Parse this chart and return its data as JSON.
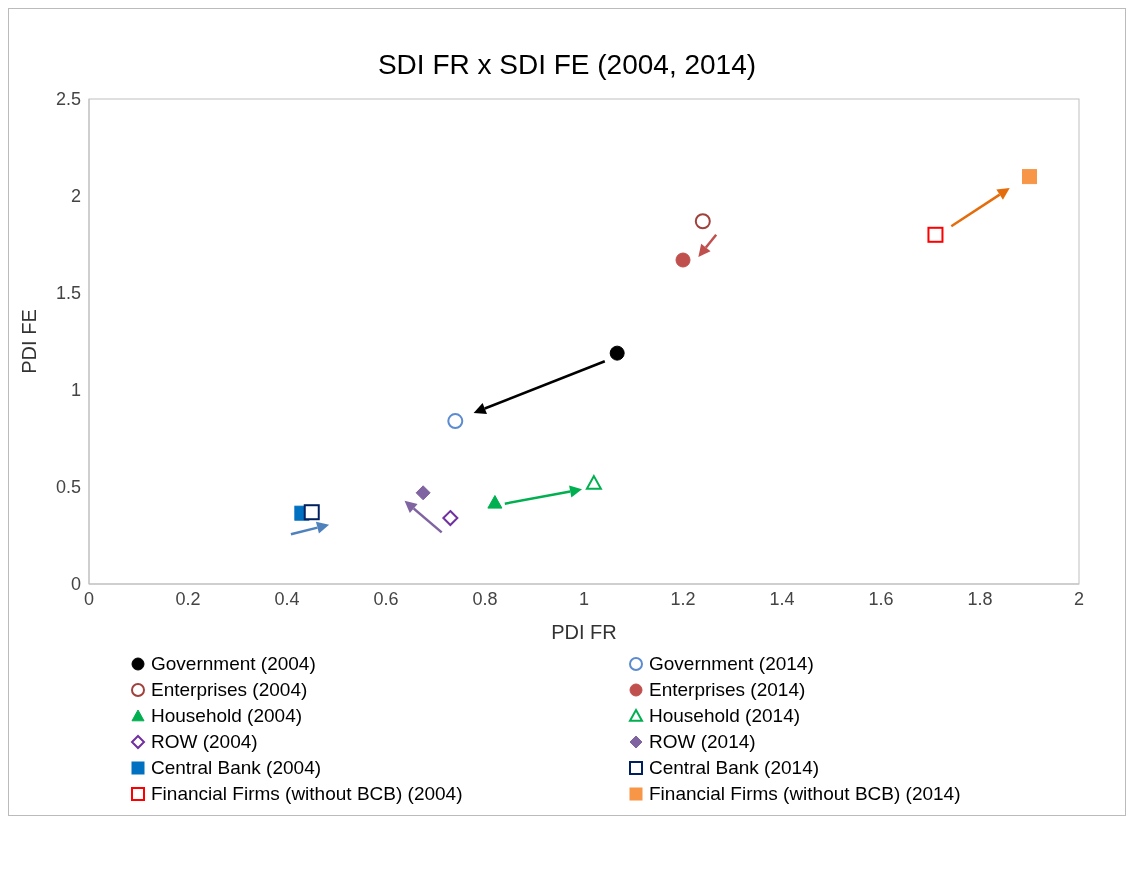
{
  "chart_data": {
    "type": "scatter",
    "title": "SDI FR x SDI FE (2004, 2014)",
    "xlabel": "PDI FR",
    "ylabel": "PDI FE",
    "xlim": [
      0,
      2
    ],
    "xticks": [
      0,
      0.2,
      0.4,
      0.6,
      0.8,
      1,
      1.2,
      1.4,
      1.6,
      1.8,
      2
    ],
    "ylim": [
      0,
      2.5
    ],
    "yticks": [
      0,
      0.5,
      1,
      1.5,
      2,
      2.5
    ],
    "grid": false,
    "legend": "bottom",
    "series": [
      {
        "name": "Government (2004)",
        "color": "#000000",
        "marker": "circle",
        "x": [
          1.067
        ],
        "values": [
          1.19
        ]
      },
      {
        "name": "Government (2014)",
        "color": "#5b8bd0",
        "marker": "circle",
        "x": [
          0.74
        ],
        "values": [
          0.84
        ]
      },
      {
        "name": "Enterprises (2004)",
        "color": "#a0413c",
        "marker": "circle",
        "x": [
          1.24
        ],
        "values": [
          1.87
        ]
      },
      {
        "name": "Enterprises (2014)",
        "color": "#c0504d",
        "marker": "circle",
        "x": [
          1.2
        ],
        "values": [
          1.67
        ]
      },
      {
        "name": "Household (2004)",
        "color": "#00b050",
        "marker": "triangle",
        "x": [
          0.82
        ],
        "values": [
          0.42
        ]
      },
      {
        "name": "Household (2014)",
        "color": "#00b050",
        "marker": "triangle",
        "x": [
          1.02
        ],
        "values": [
          0.52
        ]
      },
      {
        "name": "ROW (2004)",
        "color": "#7030a0",
        "marker": "diamond",
        "x": [
          0.73
        ],
        "values": [
          0.34
        ]
      },
      {
        "name": "ROW (2014)",
        "color": "#8064a2",
        "marker": "diamond",
        "x": [
          0.675
        ],
        "values": [
          0.47
        ]
      },
      {
        "name": "Central Bank (2004)",
        "color": "#0070c0",
        "marker": "square",
        "x": [
          0.43
        ],
        "values": [
          0.365
        ]
      },
      {
        "name": "Central Bank (2014)",
        "color": "#002060",
        "marker": "square",
        "x": [
          0.45
        ],
        "values": [
          0.37
        ]
      },
      {
        "name": "Financial Firms (without BCB) (2004)",
        "color": "#ff0000",
        "marker": "square",
        "x": [
          1.71
        ],
        "values": [
          1.8
        ]
      },
      {
        "name": "Financial Firms (without BCB) (2014)",
        "color": "#f79646",
        "marker": "square",
        "x": [
          1.9
        ],
        "values": [
          2.1
        ]
      }
    ]
  }
}
